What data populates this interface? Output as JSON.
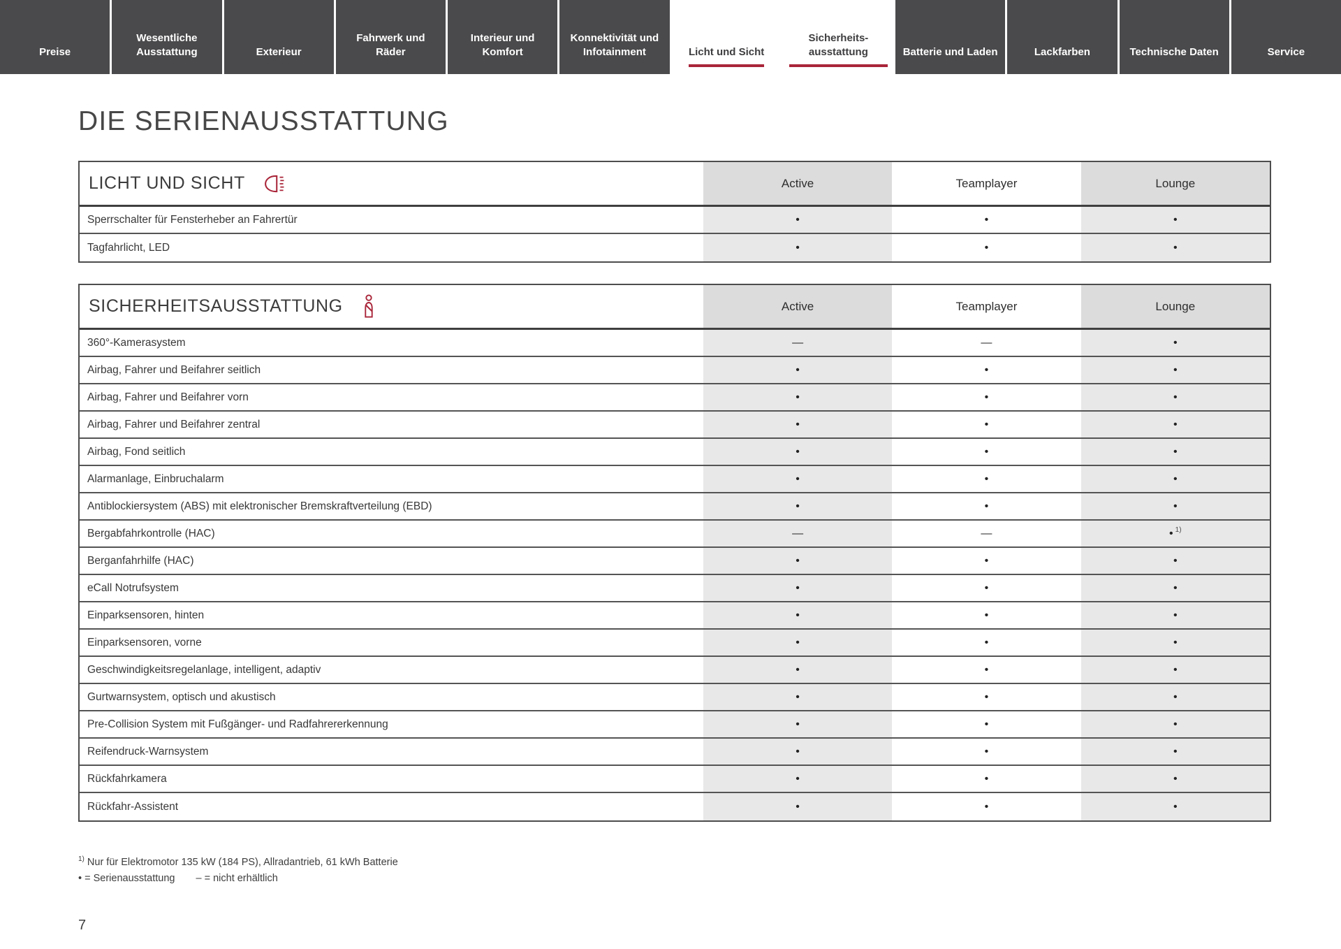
{
  "page": {
    "title": "DIE SERIENAUSSTATTUNG",
    "page_number": "7"
  },
  "colors": {
    "accent_red": "#a92539",
    "nav_bg": "#4a4a4c",
    "header_gray": "#dcdcdc",
    "cell_gray": "#e8e8e8"
  },
  "nav": {
    "tabs": [
      {
        "label": "Preise",
        "active": false
      },
      {
        "label": "Wesentliche Ausstattung",
        "active": false
      },
      {
        "label": "Exterieur",
        "active": false
      },
      {
        "label": "Fahrwerk und Räder",
        "active": false
      },
      {
        "label": "Interieur und Komfort",
        "active": false
      },
      {
        "label": "Konnektivität und Infotainment",
        "active": false
      },
      {
        "label": "Licht und Sicht",
        "active": true
      },
      {
        "label": "Sicherheits-ausstattung",
        "active": true
      },
      {
        "label": "Batterie und Laden",
        "active": false
      },
      {
        "label": "Lackfarben",
        "active": false
      },
      {
        "label": "Technische Daten",
        "active": false
      },
      {
        "label": "Service",
        "active": false
      }
    ]
  },
  "tables": [
    {
      "title": "LICHT UND SICHT",
      "icon": "headlight-icon",
      "columns": [
        "Active",
        "Teamplayer",
        "Lounge"
      ],
      "rows": [
        {
          "label": "Sperrschalter für Fensterheber an Fahrertür",
          "values": [
            {
              "v": "•"
            },
            {
              "v": "•"
            },
            {
              "v": "•"
            }
          ]
        },
        {
          "label": "Tagfahrlicht, LED",
          "values": [
            {
              "v": "•"
            },
            {
              "v": "•"
            },
            {
              "v": "•"
            }
          ]
        }
      ]
    },
    {
      "title": "SICHERHEITSAUSSTATTUNG",
      "icon": "seatbelt-icon",
      "columns": [
        "Active",
        "Teamplayer",
        "Lounge"
      ],
      "rows": [
        {
          "label": "360°-Kamerasystem",
          "values": [
            {
              "v": "—"
            },
            {
              "v": "—"
            },
            {
              "v": "•"
            }
          ]
        },
        {
          "label": "Airbag, Fahrer und Beifahrer seitlich",
          "values": [
            {
              "v": "•"
            },
            {
              "v": "•"
            },
            {
              "v": "•"
            }
          ]
        },
        {
          "label": "Airbag, Fahrer und Beifahrer vorn",
          "values": [
            {
              "v": "•"
            },
            {
              "v": "•"
            },
            {
              "v": "•"
            }
          ]
        },
        {
          "label": "Airbag, Fahrer und Beifahrer zentral",
          "values": [
            {
              "v": "•"
            },
            {
              "v": "•"
            },
            {
              "v": "•"
            }
          ]
        },
        {
          "label": "Airbag, Fond seitlich",
          "values": [
            {
              "v": "•"
            },
            {
              "v": "•"
            },
            {
              "v": "•"
            }
          ]
        },
        {
          "label": "Alarmanlage, Einbruchalarm",
          "values": [
            {
              "v": "•"
            },
            {
              "v": "•"
            },
            {
              "v": "•"
            }
          ]
        },
        {
          "label": "Antiblockiersystem (ABS) mit elektronischer Bremskraftverteilung (EBD)",
          "values": [
            {
              "v": "•"
            },
            {
              "v": "•"
            },
            {
              "v": "•"
            }
          ]
        },
        {
          "label": "Bergabfahrkontrolle (HAC)",
          "values": [
            {
              "v": "—"
            },
            {
              "v": "—"
            },
            {
              "v": "•",
              "sup": "1)"
            }
          ]
        },
        {
          "label": "Berganfahrhilfe (HAC)",
          "values": [
            {
              "v": "•"
            },
            {
              "v": "•"
            },
            {
              "v": "•"
            }
          ]
        },
        {
          "label": "eCall Notrufsystem",
          "values": [
            {
              "v": "•"
            },
            {
              "v": "•"
            },
            {
              "v": "•"
            }
          ]
        },
        {
          "label": "Einparksensoren, hinten",
          "values": [
            {
              "v": "•"
            },
            {
              "v": "•"
            },
            {
              "v": "•"
            }
          ]
        },
        {
          "label": "Einparksensoren, vorne",
          "values": [
            {
              "v": "•"
            },
            {
              "v": "•"
            },
            {
              "v": "•"
            }
          ]
        },
        {
          "label": "Geschwindigkeitsregelanlage, intelligent, adaptiv",
          "values": [
            {
              "v": "•"
            },
            {
              "v": "•"
            },
            {
              "v": "•"
            }
          ]
        },
        {
          "label": "Gurtwarnsystem, optisch und akustisch",
          "values": [
            {
              "v": "•"
            },
            {
              "v": "•"
            },
            {
              "v": "•"
            }
          ]
        },
        {
          "label": "Pre-Collision System mit Fußgänger- und Radfahrererkennung",
          "values": [
            {
              "v": "•"
            },
            {
              "v": "•"
            },
            {
              "v": "•"
            }
          ]
        },
        {
          "label": "Reifendruck-Warnsystem",
          "values": [
            {
              "v": "•"
            },
            {
              "v": "•"
            },
            {
              "v": "•"
            }
          ]
        },
        {
          "label": "Rückfahrkamera",
          "values": [
            {
              "v": "•"
            },
            {
              "v": "•"
            },
            {
              "v": "•"
            }
          ]
        },
        {
          "label": "Rückfahr-Assistent",
          "values": [
            {
              "v": "•"
            },
            {
              "v": "•"
            },
            {
              "v": "•"
            }
          ]
        }
      ]
    }
  ],
  "legend": {
    "footnote_marker": "1)",
    "footnote_text": "Nur für Elektromotor 135 kW (184 PS), Allradantrieb, 61 kWh Batterie",
    "dot_legend": "• = Serienausstattung",
    "dash_legend": "– = nicht erhältlich"
  }
}
